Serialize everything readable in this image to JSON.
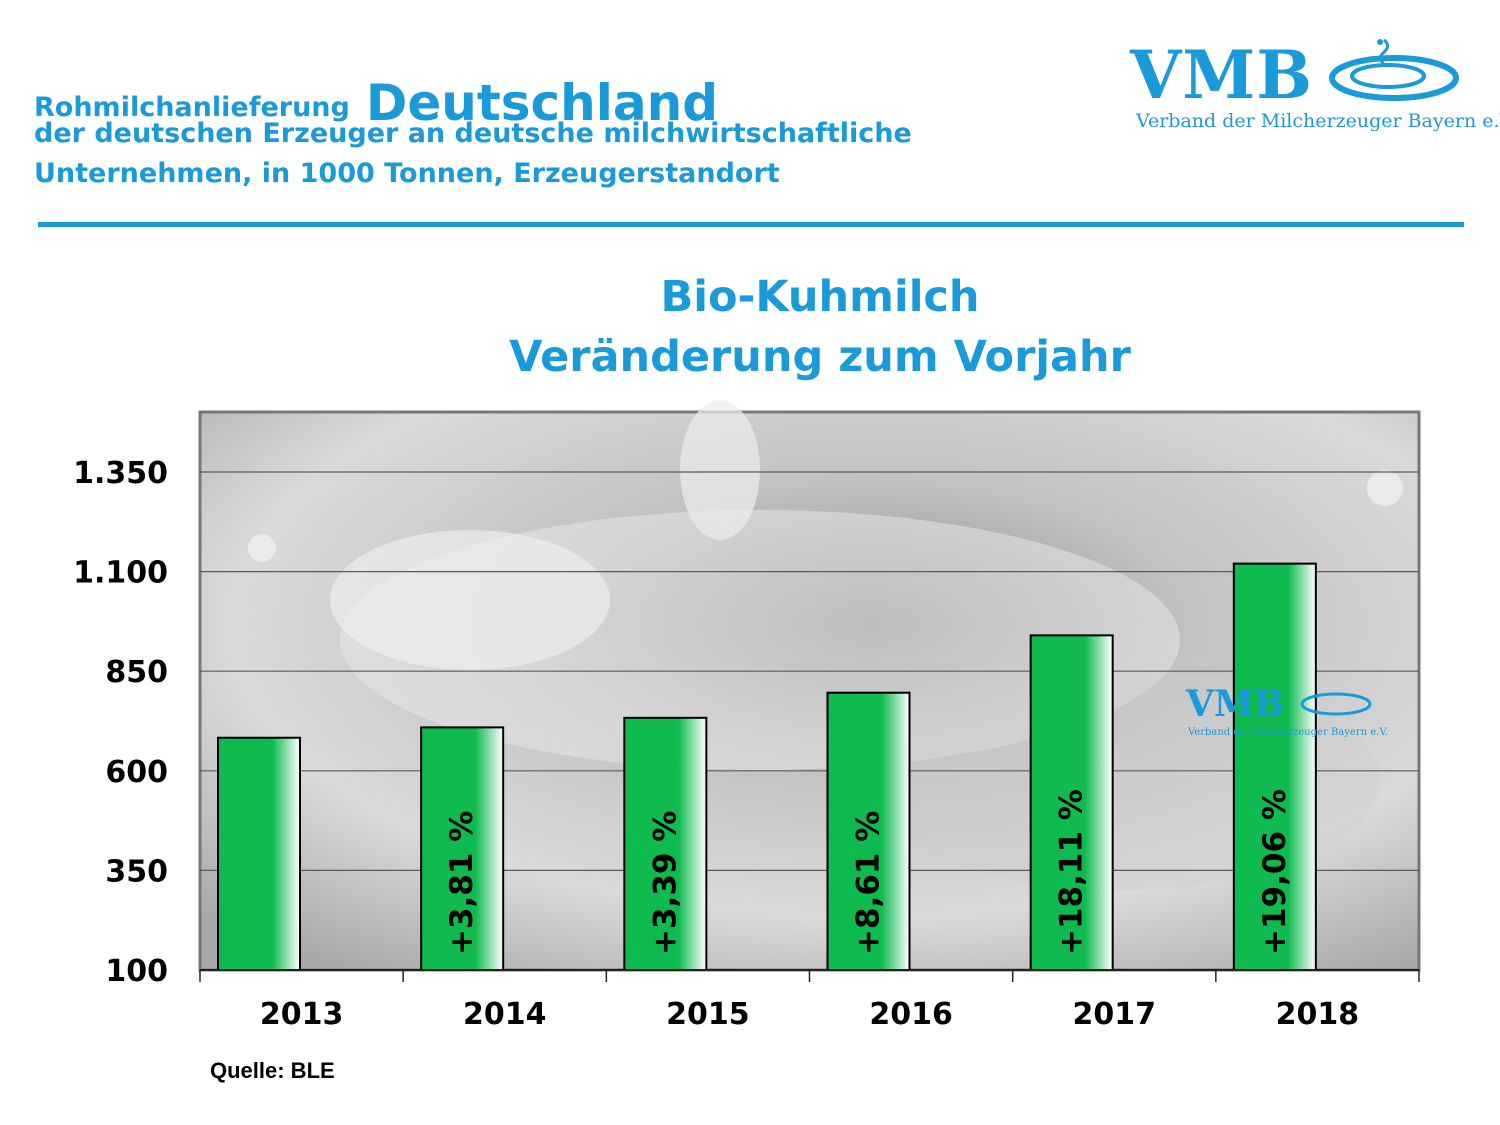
{
  "header": {
    "line1_small": "Rohmilchanlieferung",
    "line1_big": "Deutschland",
    "line2": "der deutschen Erzeuger an deutsche milchwirtschaftliche",
    "line3": "Unternehmen, in 1000 Tonnen, Erzeugerstandort"
  },
  "logo": {
    "text": "VMB",
    "subtitle": "Verband der Milcherzeuger Bayern e.V."
  },
  "colors": {
    "accent": "#1a9ad9",
    "bar": "#0fba4e"
  },
  "chart_data": {
    "type": "bar",
    "title": "Bio-Kuhmilch",
    "subtitle": "Veränderung zum Vorjahr",
    "categories": [
      "2013",
      "2014",
      "2015",
      "2016",
      "2017",
      "2018"
    ],
    "values": [
      683,
      709,
      733,
      796,
      940,
      1120
    ],
    "bar_labels": [
      "",
      "+3,81 %",
      "+3,39 %",
      "+8,61 %",
      "+18,11 %",
      "+19,06 %"
    ],
    "yticks": [
      100,
      350,
      600,
      850,
      1100,
      1350
    ],
    "ytick_labels": [
      "100",
      "350",
      "600",
      "850",
      "1.100",
      "1.350"
    ],
    "ylim": [
      100,
      1475
    ],
    "grid": true,
    "legend": "none"
  },
  "source": "Quelle: BLE"
}
